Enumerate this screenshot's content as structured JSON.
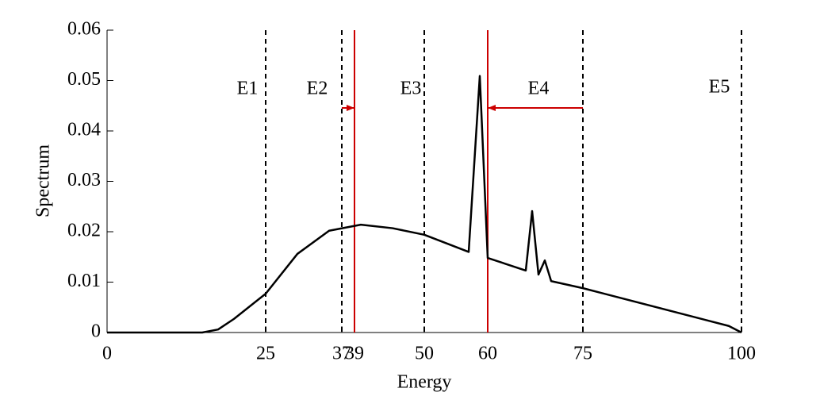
{
  "chart_data": {
    "type": "line",
    "xlabel": "Energy",
    "ylabel": "Spectrum",
    "x": [
      0,
      15,
      17.5,
      20,
      25,
      30,
      35,
      40,
      45,
      50,
      57,
      58.75,
      60,
      66,
      67,
      68,
      69,
      70,
      75,
      98,
      100
    ],
    "series": [
      {
        "color": "#000000",
        "values": [
          0,
          0,
          0.0006,
          0.0027,
          0.0077,
          0.0156,
          0.0202,
          0.0214,
          0.0207,
          0.0194,
          0.016,
          0.0509,
          0.0148,
          0.0123,
          0.0241,
          0.0115,
          0.0143,
          0.0102,
          0.0088,
          0.0013,
          0
        ]
      }
    ],
    "xlim": [
      0,
      100
    ],
    "xticks": [
      0,
      25,
      37,
      39,
      50,
      60,
      75,
      100
    ],
    "ylim": [
      0,
      0.06
    ],
    "yticks": [
      0,
      0.01,
      0.02,
      0.03,
      0.04,
      0.05,
      0.06
    ],
    "vlines": [
      {
        "x": 25,
        "color": "#000000",
        "dashed": true
      },
      {
        "x": 37,
        "color": "#000000",
        "dashed": true
      },
      {
        "x": 39,
        "color": "#cc0000",
        "dashed": false
      },
      {
        "x": 50,
        "color": "#000000",
        "dashed": true
      },
      {
        "x": 60,
        "color": "#cc0000",
        "dashed": false
      },
      {
        "x": 75,
        "color": "#000000",
        "dashed": true
      },
      {
        "x": 100,
        "color": "#000000",
        "dashed": true
      }
    ],
    "annotations": [
      "E1",
      "E2",
      "E3",
      "E4",
      "E5"
    ]
  }
}
